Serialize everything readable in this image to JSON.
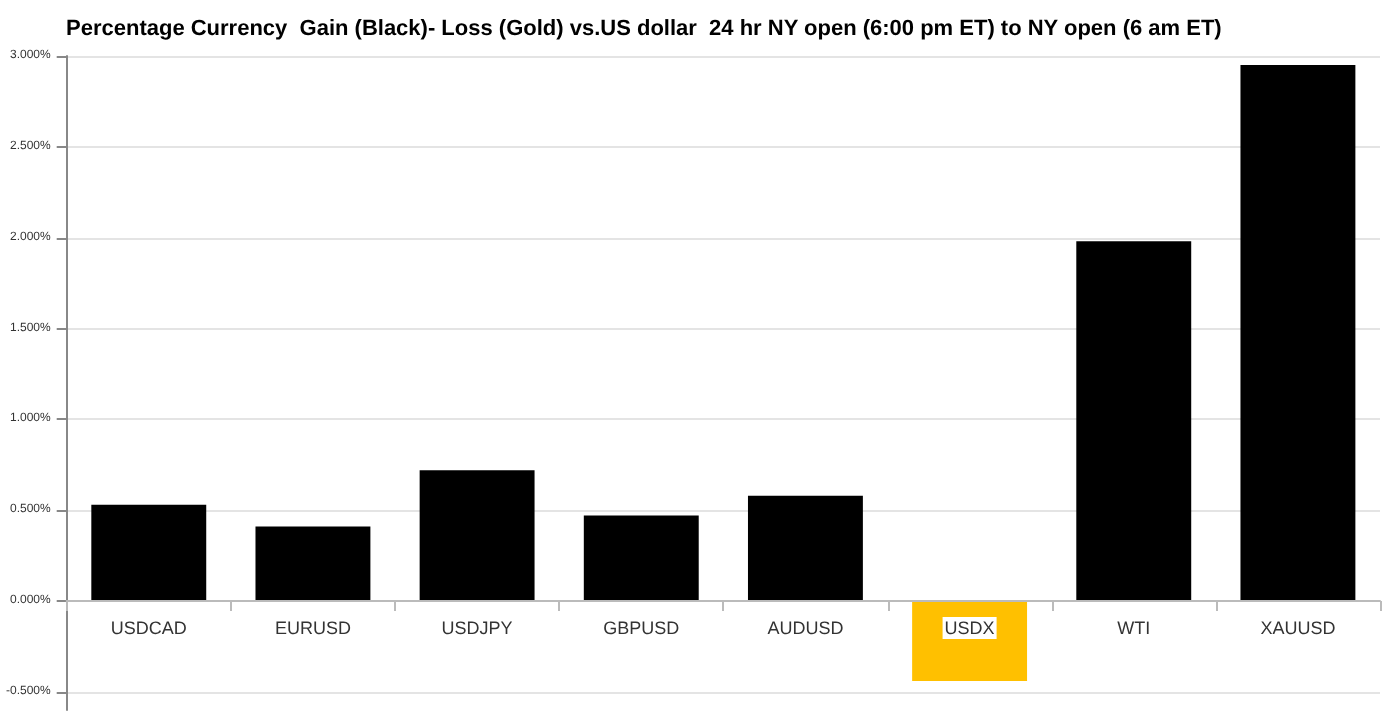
{
  "chart_data": {
    "type": "bar",
    "title": "Percentage Currency  Gain (Black)- Loss (Gold) vs.US dollar  24 hr NY open (6:00 pm ET) to NY open (6 am ET)",
    "categories": [
      "USDCAD",
      "EURUSD",
      "USDJPY",
      "GBPUSD",
      "AUDUSD",
      "USDX",
      "WTI",
      "XAUUSD"
    ],
    "values": [
      0.53,
      0.41,
      0.72,
      0.47,
      0.58,
      -0.44,
      1.98,
      2.95
    ],
    "colors": [
      "#000000",
      "#000000",
      "#000000",
      "#000000",
      "#000000",
      "#ffc000",
      "#000000",
      "#000000"
    ],
    "ylim": [
      -0.6,
      3
    ],
    "yticks": [
      {
        "value": -0.5,
        "label": "-0.500%"
      },
      {
        "value": 0,
        "label": "0.000%"
      },
      {
        "value": 0.5,
        "label": "0.500%"
      },
      {
        "value": 1,
        "label": "1.000%"
      },
      {
        "value": 1.5,
        "label": "1.500%"
      },
      {
        "value": 2,
        "label": "2.000%"
      },
      {
        "value": 2.5,
        "label": "2.500%"
      },
      {
        "value": 3,
        "label": "3.000%"
      }
    ],
    "grid": "y"
  }
}
